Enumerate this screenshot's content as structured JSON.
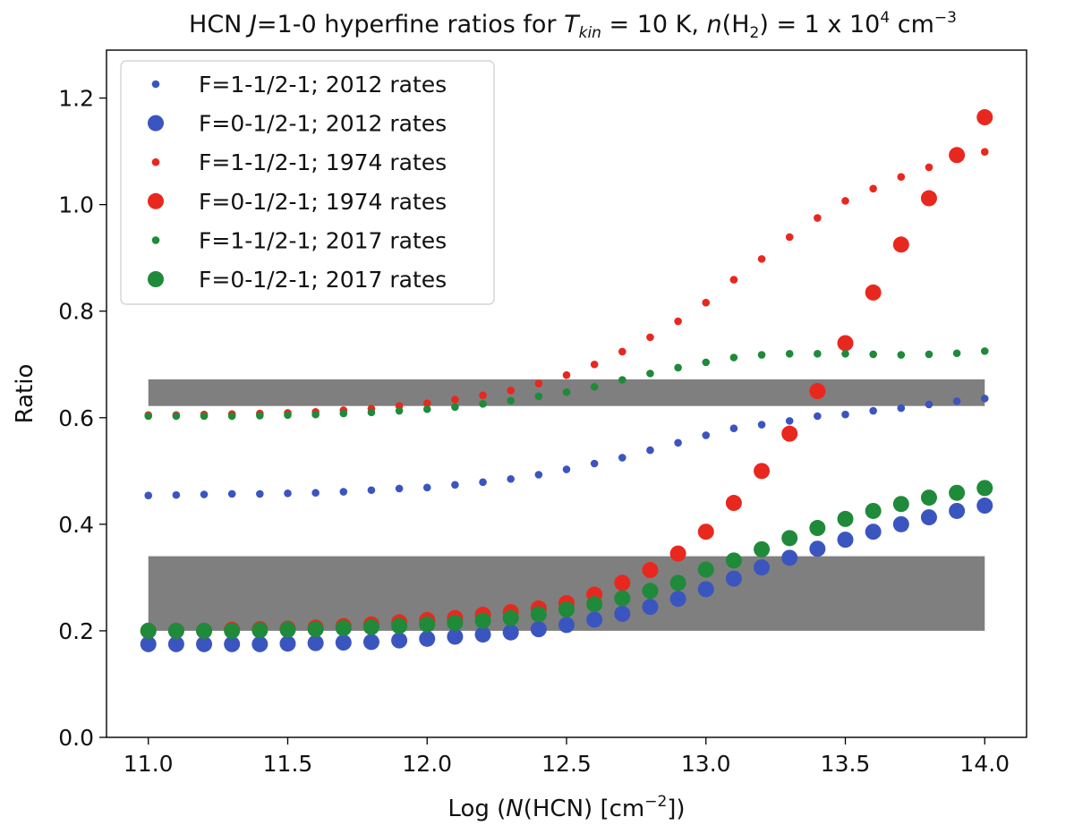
{
  "chart_data": {
    "type": "scatter",
    "title": {
      "prefix": "HCN ",
      "j_italic": "J",
      "j_rest": "=1-0 hyperfine ratios for ",
      "t_italic": "T",
      "t_sub": "kin",
      "t_rest": " = 10 K, ",
      "n_italic": "n",
      "n_open": "(H",
      "n_sub": "2",
      "n_rest": ") = 1 x 10",
      "n_exp": "4",
      "n_unit": " cm",
      "n_unit_exp": "−3"
    },
    "xlabel": {
      "prefix": "Log (",
      "n_italic": "N",
      "rest": "(HCN) [cm",
      "exp": "−2",
      "suffix": "])"
    },
    "ylabel": "Ratio",
    "xlim": [
      10.85,
      14.15
    ],
    "ylim": [
      0.0,
      1.29
    ],
    "xticks": [
      "11.0",
      "11.5",
      "12.0",
      "12.5",
      "13.0",
      "13.5",
      "14.0"
    ],
    "yticks": [
      "0.0",
      "0.2",
      "0.4",
      "0.6",
      "0.8",
      "1.0",
      "1.2"
    ],
    "legend_position": "upper-left",
    "shaded_bands": [
      {
        "x_range": [
          11.0,
          14.0
        ],
        "y_range": [
          0.622,
          0.672
        ],
        "color": "#7f7f7f"
      },
      {
        "x_range": [
          11.0,
          14.0
        ],
        "y_range": [
          0.2,
          0.34
        ],
        "color": "#7f7f7f"
      }
    ],
    "x": [
      11.0,
      11.1,
      11.2,
      11.3,
      11.4,
      11.5,
      11.6,
      11.7,
      11.8,
      11.9,
      12.0,
      12.1,
      12.2,
      12.3,
      12.4,
      12.5,
      12.6,
      12.7,
      12.8,
      12.9,
      13.0,
      13.1,
      13.2,
      13.3,
      13.4,
      13.5,
      13.6,
      13.7,
      13.8,
      13.9,
      14.0
    ],
    "series": [
      {
        "name": "F=1-1/2-1; 2012 rates",
        "color": "#3b55c0",
        "marker": "small",
        "values": [
          0.454,
          0.455,
          0.456,
          0.457,
          0.457,
          0.458,
          0.459,
          0.461,
          0.464,
          0.467,
          0.469,
          0.474,
          0.479,
          0.485,
          0.493,
          0.503,
          0.514,
          0.525,
          0.539,
          0.553,
          0.567,
          0.58,
          0.587,
          0.594,
          0.603,
          0.606,
          0.613,
          0.618,
          0.625,
          0.631,
          0.636
        ]
      },
      {
        "name": "F=0-1/2-1; 2012 rates",
        "color": "#3b55c0",
        "marker": "large",
        "values": [
          0.175,
          0.175,
          0.175,
          0.175,
          0.175,
          0.176,
          0.177,
          0.178,
          0.179,
          0.182,
          0.185,
          0.189,
          0.193,
          0.197,
          0.203,
          0.211,
          0.221,
          0.232,
          0.245,
          0.26,
          0.278,
          0.298,
          0.319,
          0.337,
          0.354,
          0.371,
          0.386,
          0.4,
          0.413,
          0.425,
          0.435
        ]
      },
      {
        "name": "F=1-1/2-1; 1974 rates",
        "color": "#e8281e",
        "marker": "small",
        "values": [
          0.605,
          0.605,
          0.606,
          0.607,
          0.608,
          0.609,
          0.611,
          0.614,
          0.617,
          0.622,
          0.627,
          0.634,
          0.642,
          0.651,
          0.664,
          0.68,
          0.7,
          0.724,
          0.751,
          0.781,
          0.816,
          0.859,
          0.898,
          0.939,
          0.975,
          1.007,
          1.03,
          1.052,
          1.07,
          1.087,
          1.099
        ]
      },
      {
        "name": "F=0-1/2-1; 1974 rates",
        "color": "#e8281e",
        "marker": "large",
        "values": [
          0.2,
          0.2,
          0.2,
          0.202,
          0.203,
          0.204,
          0.206,
          0.209,
          0.212,
          0.216,
          0.22,
          0.224,
          0.23,
          0.235,
          0.242,
          0.252,
          0.268,
          0.29,
          0.314,
          0.345,
          0.386,
          0.44,
          0.5,
          0.57,
          0.65,
          0.74,
          0.835,
          0.925,
          1.012,
          1.093,
          1.164
        ]
      },
      {
        "name": "F=1-1/2-1; 2017 rates",
        "color": "#1f8a3a",
        "marker": "small",
        "values": [
          0.603,
          0.603,
          0.603,
          0.603,
          0.604,
          0.605,
          0.606,
          0.608,
          0.61,
          0.613,
          0.616,
          0.62,
          0.626,
          0.632,
          0.64,
          0.648,
          0.658,
          0.671,
          0.683,
          0.694,
          0.704,
          0.713,
          0.718,
          0.72,
          0.72,
          0.72,
          0.719,
          0.718,
          0.719,
          0.721,
          0.725
        ]
      },
      {
        "name": "F=0-1/2-1; 2017 rates",
        "color": "#1f8a3a",
        "marker": "large",
        "values": [
          0.2,
          0.2,
          0.2,
          0.2,
          0.201,
          0.202,
          0.203,
          0.205,
          0.207,
          0.209,
          0.212,
          0.215,
          0.219,
          0.224,
          0.231,
          0.24,
          0.25,
          0.261,
          0.275,
          0.29,
          0.315,
          0.332,
          0.353,
          0.374,
          0.393,
          0.41,
          0.425,
          0.438,
          0.45,
          0.459,
          0.468
        ]
      }
    ]
  }
}
